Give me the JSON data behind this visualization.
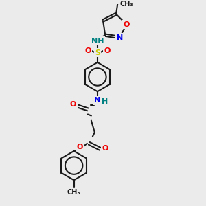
{
  "bg_color": "#ebebeb",
  "bond_color": "#1a1a1a",
  "N_color": "#0000ee",
  "O_color": "#ee0000",
  "S_color": "#cccc00",
  "NH_color": "#008080",
  "fs": 8,
  "lw": 1.5,
  "xlim": [
    60,
    260
  ],
  "ylim": [
    5,
    295
  ]
}
